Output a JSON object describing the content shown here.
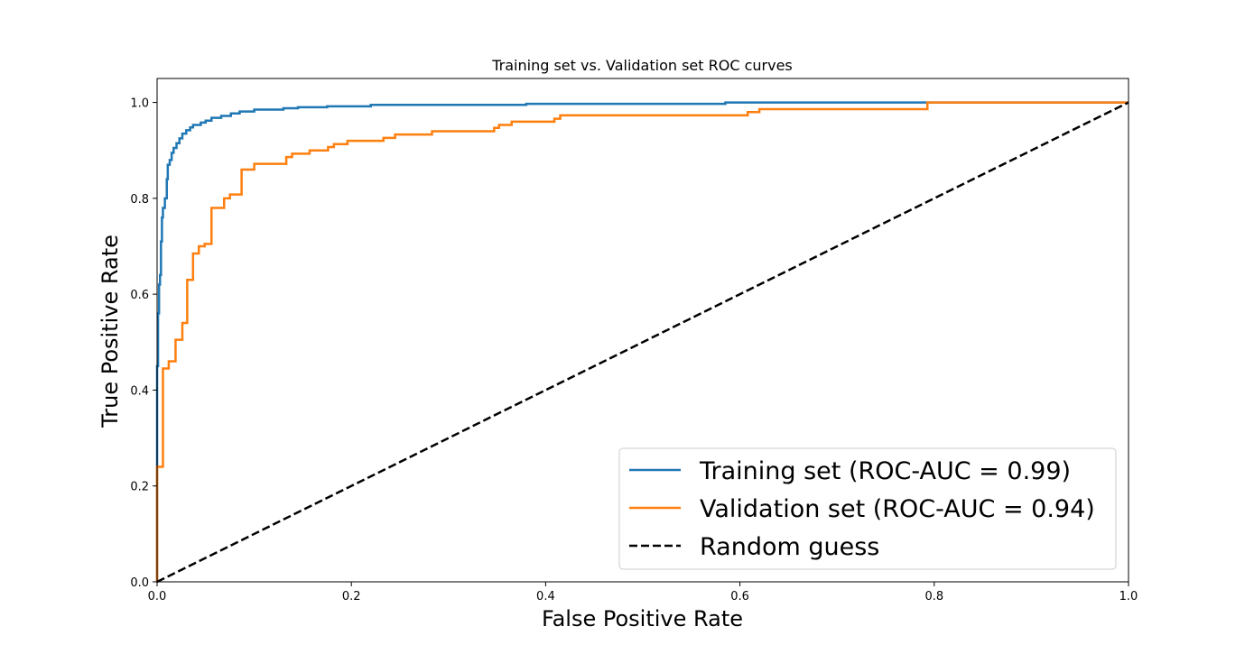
{
  "chart_data": {
    "type": "line",
    "title": "Training set vs. Validation set ROC curves",
    "xlabel": "False Positive Rate",
    "ylabel": "True Positive Rate",
    "xlim": [
      0.0,
      1.0
    ],
    "ylim": [
      0.0,
      1.05
    ],
    "xticks": [
      "0.0",
      "0.2",
      "0.4",
      "0.6",
      "0.8",
      "1.0"
    ],
    "yticks": [
      "0.0",
      "0.2",
      "0.4",
      "0.6",
      "0.8",
      "1.0"
    ],
    "grid": false,
    "legend_position": "lower-right",
    "series": [
      {
        "name": "Training set (ROC-AUC = 0.99)",
        "color": "#1f77b4",
        "style": "solid",
        "step": true,
        "points": [
          [
            0.0,
            0.0
          ],
          [
            0.0,
            0.45
          ],
          [
            0.001,
            0.45
          ],
          [
            0.001,
            0.56
          ],
          [
            0.002,
            0.56
          ],
          [
            0.002,
            0.62
          ],
          [
            0.003,
            0.62
          ],
          [
            0.003,
            0.64
          ],
          [
            0.004,
            0.64
          ],
          [
            0.004,
            0.71
          ],
          [
            0.005,
            0.71
          ],
          [
            0.005,
            0.76
          ],
          [
            0.006,
            0.76
          ],
          [
            0.006,
            0.78
          ],
          [
            0.008,
            0.78
          ],
          [
            0.008,
            0.8
          ],
          [
            0.01,
            0.8
          ],
          [
            0.01,
            0.84
          ],
          [
            0.011,
            0.84
          ],
          [
            0.011,
            0.87
          ],
          [
            0.013,
            0.87
          ],
          [
            0.013,
            0.88
          ],
          [
            0.015,
            0.88
          ],
          [
            0.015,
            0.895
          ],
          [
            0.017,
            0.895
          ],
          [
            0.017,
            0.905
          ],
          [
            0.02,
            0.905
          ],
          [
            0.02,
            0.915
          ],
          [
            0.023,
            0.915
          ],
          [
            0.023,
            0.925
          ],
          [
            0.026,
            0.925
          ],
          [
            0.026,
            0.935
          ],
          [
            0.03,
            0.935
          ],
          [
            0.03,
            0.942
          ],
          [
            0.034,
            0.942
          ],
          [
            0.034,
            0.948
          ],
          [
            0.037,
            0.948
          ],
          [
            0.037,
            0.953
          ],
          [
            0.045,
            0.953
          ],
          [
            0.045,
            0.958
          ],
          [
            0.05,
            0.958
          ],
          [
            0.05,
            0.962
          ],
          [
            0.056,
            0.962
          ],
          [
            0.056,
            0.968
          ],
          [
            0.066,
            0.968
          ],
          [
            0.066,
            0.972
          ],
          [
            0.076,
            0.972
          ],
          [
            0.076,
            0.977
          ],
          [
            0.085,
            0.977
          ],
          [
            0.085,
            0.981
          ],
          [
            0.1,
            0.981
          ],
          [
            0.1,
            0.985
          ],
          [
            0.13,
            0.985
          ],
          [
            0.13,
            0.988
          ],
          [
            0.145,
            0.988
          ],
          [
            0.145,
            0.99
          ],
          [
            0.175,
            0.99
          ],
          [
            0.175,
            0.992
          ],
          [
            0.22,
            0.992
          ],
          [
            0.22,
            0.995
          ],
          [
            0.38,
            0.995
          ],
          [
            0.38,
            0.997
          ],
          [
            0.585,
            0.997
          ],
          [
            0.585,
            1.0
          ],
          [
            0.79,
            1.0
          ],
          [
            1.0,
            1.0
          ]
        ]
      },
      {
        "name": "Validation set (ROC-AUC = 0.94)",
        "color": "#ff7f0e",
        "style": "solid",
        "step": true,
        "points": [
          [
            0.0,
            0.0
          ],
          [
            0.0,
            0.24
          ],
          [
            0.006,
            0.24
          ],
          [
            0.006,
            0.445
          ],
          [
            0.012,
            0.445
          ],
          [
            0.012,
            0.46
          ],
          [
            0.019,
            0.46
          ],
          [
            0.019,
            0.505
          ],
          [
            0.026,
            0.505
          ],
          [
            0.026,
            0.54
          ],
          [
            0.031,
            0.54
          ],
          [
            0.031,
            0.63
          ],
          [
            0.037,
            0.63
          ],
          [
            0.037,
            0.685
          ],
          [
            0.043,
            0.685
          ],
          [
            0.043,
            0.7
          ],
          [
            0.049,
            0.7
          ],
          [
            0.049,
            0.705
          ],
          [
            0.056,
            0.705
          ],
          [
            0.056,
            0.78
          ],
          [
            0.069,
            0.78
          ],
          [
            0.069,
            0.8
          ],
          [
            0.075,
            0.8
          ],
          [
            0.075,
            0.808
          ],
          [
            0.087,
            0.808
          ],
          [
            0.087,
            0.86
          ],
          [
            0.1,
            0.86
          ],
          [
            0.1,
            0.872
          ],
          [
            0.133,
            0.872
          ],
          [
            0.133,
            0.886
          ],
          [
            0.139,
            0.886
          ],
          [
            0.139,
            0.893
          ],
          [
            0.157,
            0.893
          ],
          [
            0.157,
            0.9
          ],
          [
            0.176,
            0.9
          ],
          [
            0.176,
            0.907
          ],
          [
            0.182,
            0.907
          ],
          [
            0.182,
            0.913
          ],
          [
            0.196,
            0.913
          ],
          [
            0.196,
            0.92
          ],
          [
            0.233,
            0.92
          ],
          [
            0.233,
            0.926
          ],
          [
            0.245,
            0.926
          ],
          [
            0.245,
            0.933
          ],
          [
            0.283,
            0.933
          ],
          [
            0.283,
            0.94
          ],
          [
            0.347,
            0.94
          ],
          [
            0.347,
            0.947
          ],
          [
            0.352,
            0.947
          ],
          [
            0.352,
            0.953
          ],
          [
            0.365,
            0.953
          ],
          [
            0.365,
            0.96
          ],
          [
            0.409,
            0.96
          ],
          [
            0.409,
            0.966
          ],
          [
            0.415,
            0.966
          ],
          [
            0.415,
            0.973
          ],
          [
            0.608,
            0.973
          ],
          [
            0.608,
            0.98
          ],
          [
            0.62,
            0.98
          ],
          [
            0.62,
            0.986
          ],
          [
            0.793,
            0.986
          ],
          [
            0.793,
            1.0
          ],
          [
            1.0,
            1.0
          ]
        ]
      },
      {
        "name": "Random guess",
        "color": "#000000",
        "style": "dashed",
        "step": false,
        "points": [
          [
            0.0,
            0.0
          ],
          [
            1.0,
            1.0
          ]
        ]
      }
    ]
  }
}
